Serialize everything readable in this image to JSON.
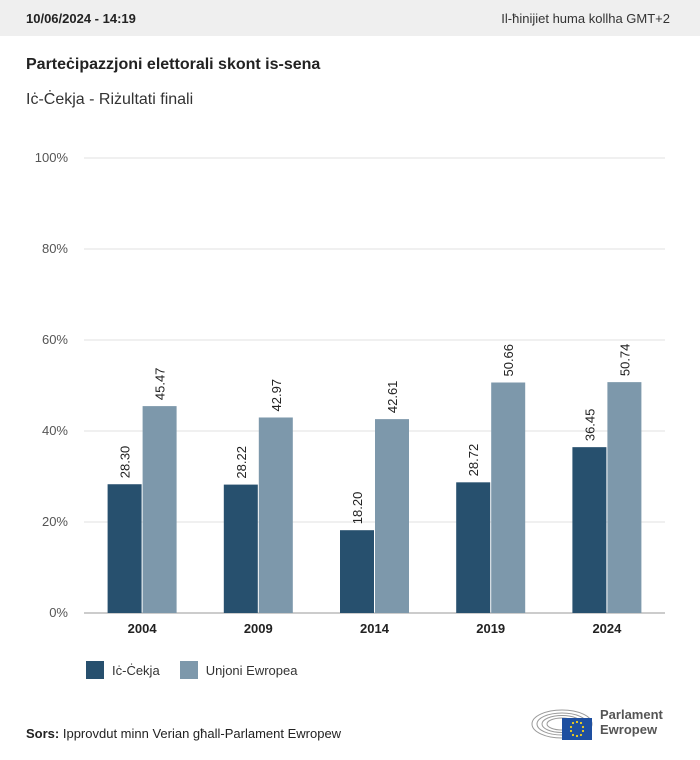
{
  "header": {
    "timestamp": "10/06/2024 - 14:19",
    "timezone_note": "Il-ħinijiet huma kollha GMT+2"
  },
  "title": "Parteċipazzjoni elettorali skont is-sena",
  "subtitle": "Iċ-Ċekja - Riżultati finali",
  "colors": {
    "series_country": "#27506e",
    "series_eu": "#7d98ab",
    "grid": "#e2e2e2",
    "axis": "#999999"
  },
  "chart_data": {
    "type": "bar",
    "categories": [
      "2004",
      "2009",
      "2014",
      "2019",
      "2024"
    ],
    "series": [
      {
        "name": "Iċ-Ċekja",
        "values": [
          28.3,
          28.22,
          18.2,
          28.72,
          36.45
        ]
      },
      {
        "name": "Unjoni Ewropea",
        "values": [
          45.47,
          42.97,
          42.61,
          50.66,
          50.74
        ]
      }
    ],
    "value_labels": [
      [
        "28.30",
        "28.22",
        "18.20",
        "28.72",
        "36.45"
      ],
      [
        "45.47",
        "42.97",
        "42.61",
        "50.66",
        "50.74"
      ]
    ],
    "ylim": [
      0,
      100
    ],
    "yticks": [
      0,
      20,
      40,
      60,
      80,
      100
    ],
    "ytick_labels": [
      "0%",
      "20%",
      "40%",
      "60%",
      "80%",
      "100%"
    ],
    "grid": true,
    "legend_position": "bottom-left"
  },
  "legend": {
    "items": [
      {
        "label": "Iċ-Ċekja"
      },
      {
        "label": "Unjoni Ewropea"
      }
    ]
  },
  "footer": {
    "source_label": "Sors:",
    "source_text": "Ipprovdut minn Verian għall-Parlament Ewropew",
    "logo_line1": "Parlament",
    "logo_line2": "Ewropew"
  }
}
